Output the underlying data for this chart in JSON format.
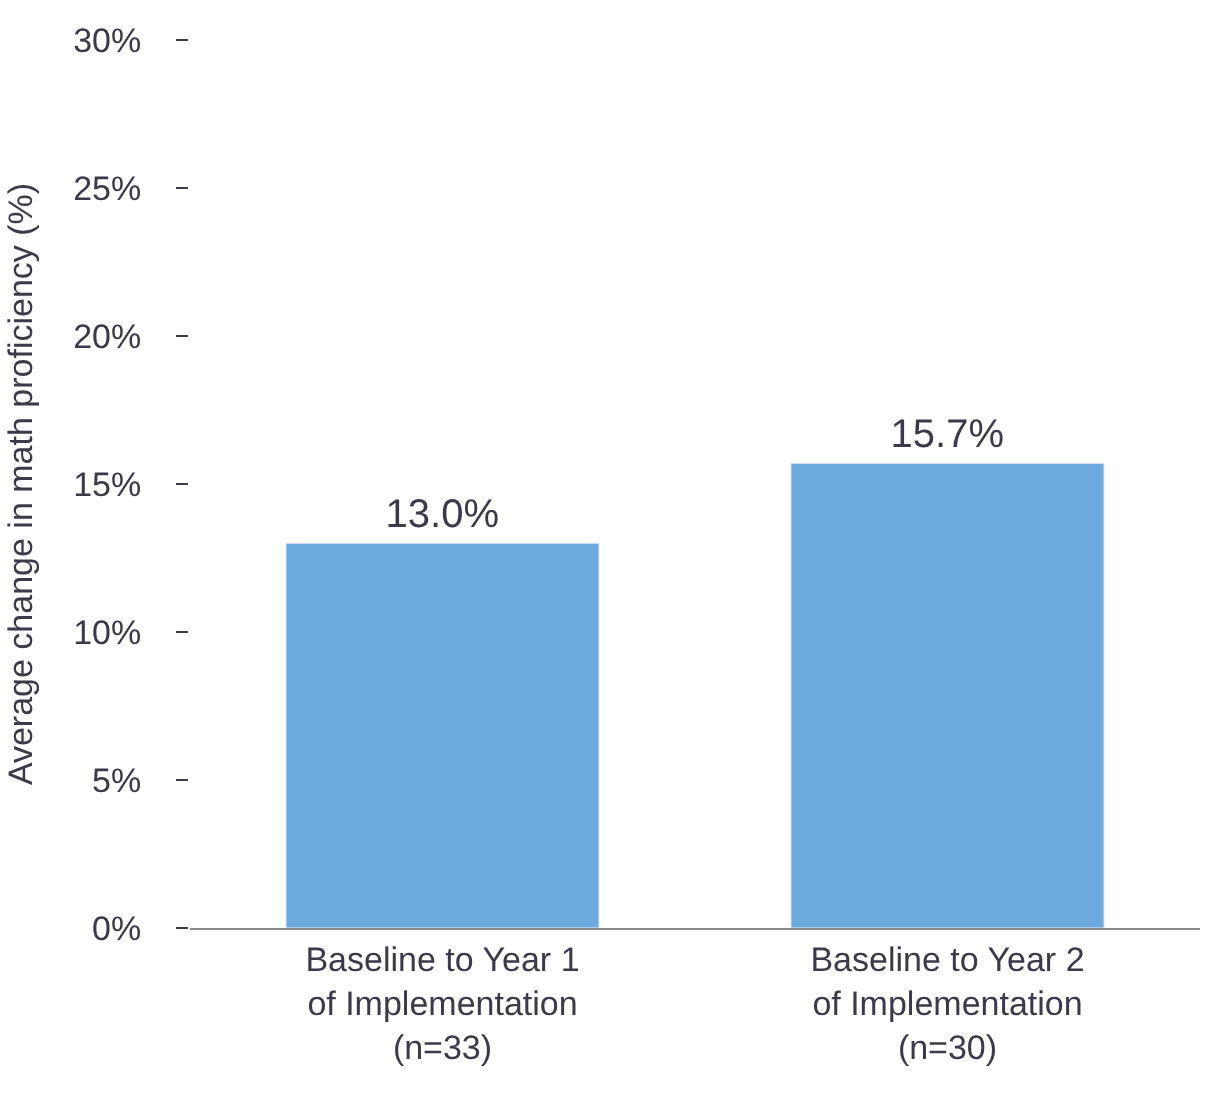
{
  "chart_data": {
    "type": "bar",
    "ylabel": "Average change in math proficiency (%)",
    "categories": [
      "Baseline to Year 1\nof Implementation\n(n=33)",
      "Baseline to Year 2\nof Implementation\n(n=30)"
    ],
    "values": [
      13.0,
      15.7
    ],
    "value_labels": [
      "13.0%",
      "15.7%"
    ],
    "color": "#6aaadf",
    "ylim": [
      0,
      30
    ],
    "yticks": [
      {
        "value": 0,
        "label": "0%"
      },
      {
        "value": 5,
        "label": "5%"
      },
      {
        "value": 10,
        "label": "10%"
      },
      {
        "value": 15,
        "label": "15%"
      },
      {
        "value": 20,
        "label": "20%"
      },
      {
        "value": 25,
        "label": "25%"
      },
      {
        "value": 30,
        "label": "30%"
      }
    ],
    "legend": false
  }
}
